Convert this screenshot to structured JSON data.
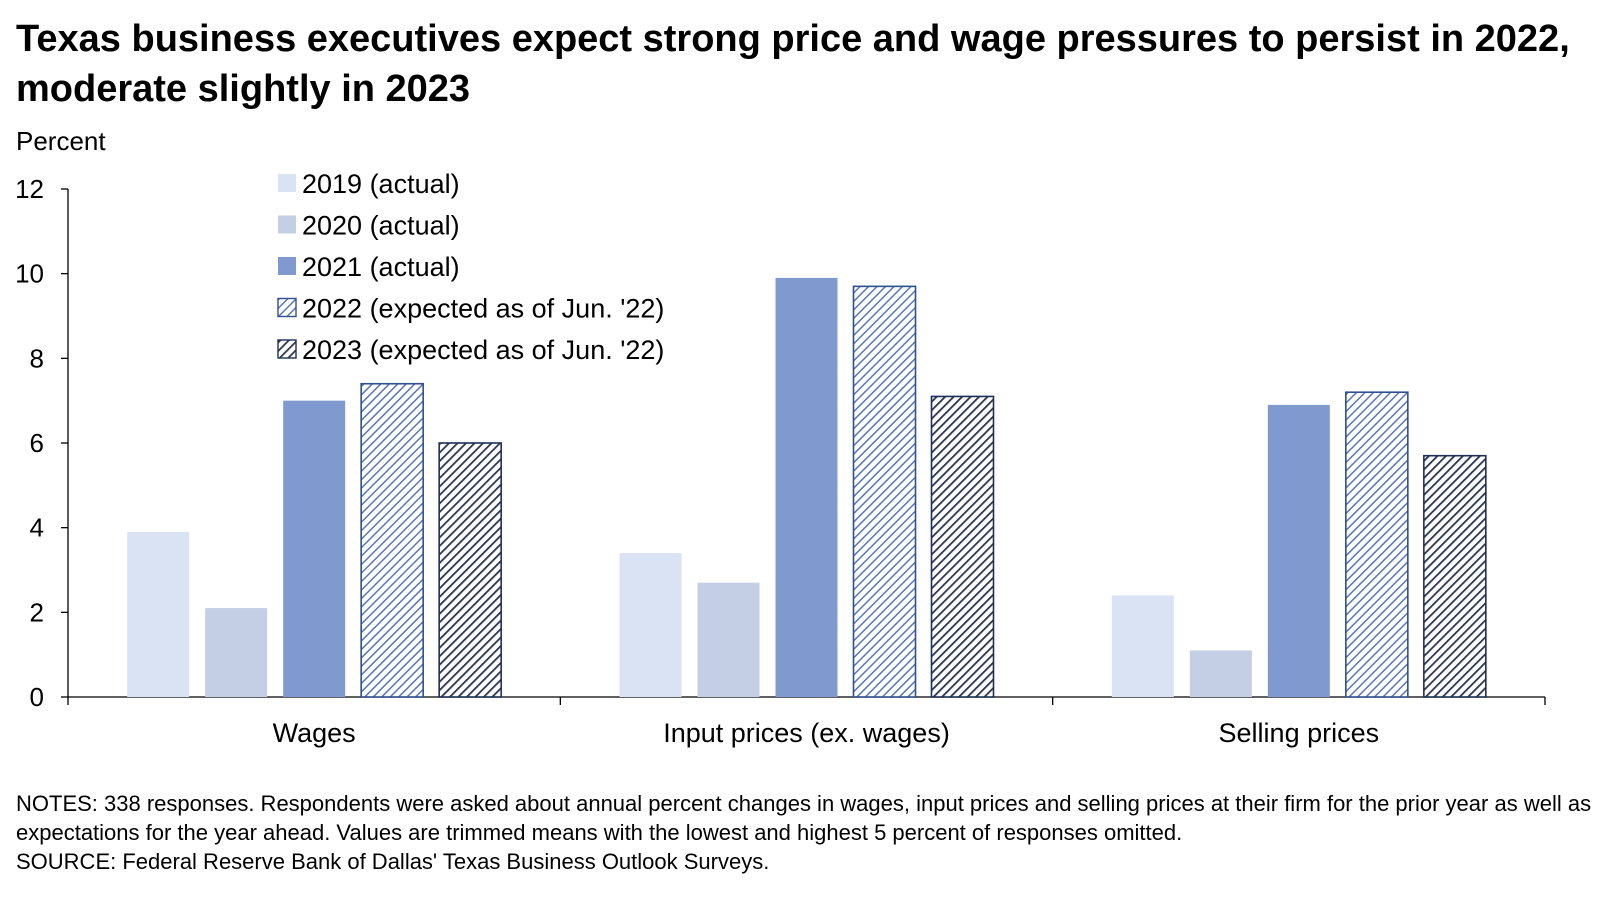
{
  "title": "Texas business executives expect strong price and wage pressures to persist in 2022, moderate slightly in 2023",
  "notes": "NOTES: 338 responses. Respondents were asked about annual percent changes in wages, input prices and selling prices at their firm for the prior year as well as expectations for the year ahead. Values are trimmed means with the lowest and highest 5 percent of responses omitted.",
  "source": "SOURCE: Federal Reserve Bank of Dallas' Texas Business Outlook Surveys.",
  "chart_data": {
    "type": "bar",
    "ylabel": "Percent",
    "xlabel": "",
    "ylim": [
      0,
      12
    ],
    "yticks": [
      0,
      2,
      4,
      6,
      8,
      10,
      12
    ],
    "grid": false,
    "legend_position": "top-left",
    "categories": [
      "Wages",
      "Input prices (ex. wages)",
      "Selling prices"
    ],
    "series": [
      {
        "name": "2019 (actual)",
        "values": [
          3.9,
          3.4,
          2.4
        ],
        "color": "#dae3f3",
        "pattern": "solid"
      },
      {
        "name": "2020 (actual)",
        "values": [
          2.1,
          2.7,
          1.1
        ],
        "color": "#c4cee5",
        "pattern": "solid"
      },
      {
        "name": "2021 (actual)",
        "values": [
          7.0,
          9.9,
          6.9
        ],
        "color": "#8099cf",
        "pattern": "solid"
      },
      {
        "name": "2022 (expected as of Jun. '22)",
        "values": [
          7.4,
          9.7,
          7.2
        ],
        "color": "#2f4f8f",
        "pattern": "hatch-light"
      },
      {
        "name": "2023 (expected as of Jun. '22)",
        "values": [
          6.0,
          7.1,
          5.7
        ],
        "color": "#1f3057",
        "pattern": "hatch-dark"
      }
    ]
  }
}
